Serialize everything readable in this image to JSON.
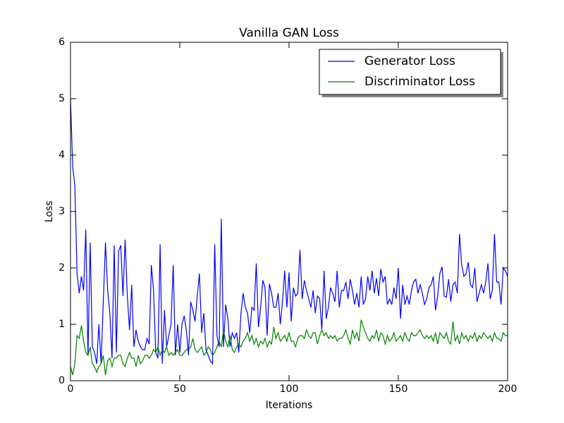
{
  "chart_data": {
    "type": "line",
    "title": "Vanilla GAN Loss",
    "x_label": "Iterations",
    "y_label": "Loss",
    "xlim": [
      0,
      200
    ],
    "xticks": [
      0,
      50,
      100,
      150,
      200
    ],
    "ylim": [
      0,
      6
    ],
    "yticks": [
      0,
      1,
      2,
      3,
      4,
      5,
      6
    ],
    "grid": false,
    "legend": "upper right",
    "series": [
      {
        "name": "Generator Loss",
        "color": "#0000ff",
        "values": [
          5.0,
          3.8,
          3.45,
          1.9,
          1.55,
          1.85,
          1.6,
          2.68,
          0.45,
          2.45,
          0.6,
          0.5,
          0.3,
          1.0,
          0.3,
          1.4,
          2.45,
          1.6,
          1.2,
          0.4,
          2.4,
          0.5,
          2.3,
          2.4,
          1.5,
          2.5,
          1.5,
          0.9,
          1.7,
          0.6,
          0.9,
          0.7,
          0.6,
          0.55,
          0.55,
          0.75,
          0.65,
          2.05,
          1.6,
          0.5,
          0.4,
          2.42,
          0.3,
          1.25,
          0.6,
          0.8,
          1.0,
          2.05,
          0.45,
          1.0,
          0.5,
          1.0,
          1.15,
          0.9,
          0.45,
          1.4,
          1.25,
          1.05,
          1.5,
          1.9,
          0.85,
          1.2,
          0.55,
          0.45,
          0.35,
          0.3,
          2.42,
          0.8,
          0.6,
          2.87,
          0.6,
          1.35,
          1.1,
          0.6,
          0.85,
          0.75,
          0.85,
          0.5,
          1.2,
          1.55,
          1.3,
          1.2,
          0.85,
          1.3,
          1.25,
          2.08,
          0.95,
          1.3,
          1.78,
          1.65,
          0.8,
          1.72,
          1.55,
          1.3,
          1.3,
          1.55,
          1.0,
          1.4,
          1.95,
          1.3,
          1.92,
          1.05,
          1.65,
          1.5,
          1.55,
          2.32,
          1.45,
          1.78,
          1.6,
          1.45,
          1.3,
          1.6,
          1.2,
          1.5,
          1.45,
          0.9,
          1.95,
          1.1,
          1.3,
          1.65,
          1.55,
          1.4,
          1.95,
          1.3,
          1.6,
          1.6,
          1.75,
          1.45,
          1.8,
          1.6,
          1.35,
          1.55,
          1.3,
          1.85,
          1.35,
          1.45,
          1.85,
          1.6,
          1.95,
          1.55,
          1.82,
          1.5,
          1.98,
          1.75,
          1.85,
          1.35,
          1.45,
          1.35,
          1.65,
          1.45,
          2.0,
          1.1,
          1.7,
          1.35,
          1.5,
          1.35,
          1.6,
          1.75,
          1.8,
          1.55,
          1.7,
          1.55,
          1.35,
          1.45,
          1.65,
          1.7,
          1.85,
          1.25,
          1.5,
          1.9,
          2.02,
          1.5,
          1.48,
          1.8,
          1.4,
          1.7,
          1.75,
          1.55,
          2.6,
          2.05,
          1.85,
          1.9,
          2.1,
          1.7,
          1.65,
          2.0,
          1.4,
          1.55,
          1.7,
          1.55,
          1.75,
          2.08,
          1.45,
          1.6,
          2.6,
          1.75,
          1.75,
          1.35,
          2.0,
          1.95,
          1.85
        ]
      },
      {
        "name": "Discriminator Loss",
        "color": "#008000",
        "values": [
          0.25,
          0.1,
          0.3,
          0.8,
          0.75,
          0.98,
          0.7,
          0.5,
          0.45,
          0.6,
          0.3,
          0.25,
          0.15,
          0.25,
          0.3,
          0.45,
          0.1,
          0.35,
          0.4,
          0.25,
          0.4,
          0.4,
          0.45,
          0.45,
          0.3,
          0.25,
          0.4,
          0.5,
          0.4,
          0.4,
          0.25,
          0.45,
          0.3,
          0.35,
          0.45,
          0.45,
          0.4,
          0.45,
          0.55,
          0.5,
          0.6,
          0.45,
          0.55,
          0.5,
          0.6,
          0.45,
          0.5,
          0.45,
          0.5,
          0.55,
          0.45,
          0.45,
          0.5,
          0.55,
          0.55,
          0.6,
          0.75,
          0.55,
          0.5,
          0.55,
          0.6,
          0.45,
          0.5,
          0.6,
          0.55,
          0.45,
          0.5,
          0.6,
          0.7,
          0.6,
          0.9,
          0.7,
          0.6,
          0.8,
          0.55,
          0.5,
          0.6,
          0.65,
          0.6,
          0.7,
          0.75,
          0.85,
          0.7,
          0.8,
          0.65,
          0.75,
          0.6,
          0.7,
          0.65,
          0.75,
          0.6,
          0.7,
          0.65,
          0.95,
          0.75,
          0.85,
          0.7,
          0.75,
          0.8,
          0.7,
          0.85,
          0.7,
          0.7,
          0.6,
          0.75,
          0.8,
          0.8,
          0.75,
          0.9,
          0.8,
          0.75,
          0.85,
          0.85,
          0.65,
          0.8,
          0.9,
          0.8,
          0.85,
          0.75,
          0.8,
          0.75,
          0.8,
          0.7,
          0.75,
          0.75,
          0.8,
          0.9,
          0.75,
          0.65,
          0.9,
          0.75,
          0.85,
          0.7,
          1.08,
          0.95,
          0.85,
          0.75,
          0.7,
          0.8,
          0.75,
          0.9,
          0.7,
          0.85,
          0.8,
          0.65,
          0.8,
          0.7,
          0.75,
          0.85,
          0.7,
          0.75,
          0.8,
          0.7,
          0.85,
          0.75,
          0.7,
          0.85,
          0.8,
          0.8,
          0.85,
          0.9,
          0.8,
          0.75,
          0.8,
          0.75,
          0.8,
          0.7,
          0.85,
          0.65,
          0.85,
          0.8,
          0.75,
          0.85,
          0.7,
          0.65,
          1.05,
          0.7,
          0.8,
          0.65,
          0.85,
          0.75,
          0.8,
          0.7,
          0.8,
          0.75,
          0.85,
          0.7,
          0.8,
          0.75,
          0.85,
          0.8,
          0.75,
          0.8,
          0.7,
          0.85,
          0.75,
          0.75,
          0.7,
          0.85,
          0.8,
          0.8
        ]
      }
    ]
  }
}
